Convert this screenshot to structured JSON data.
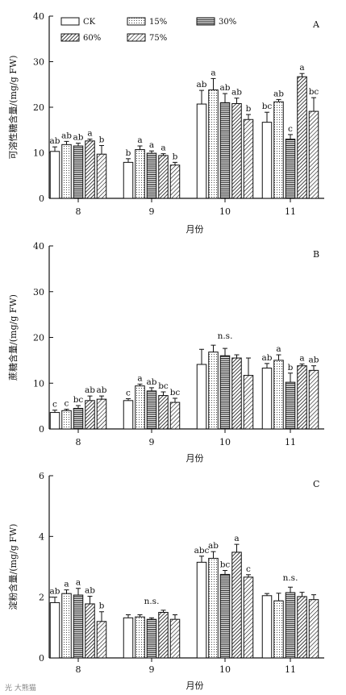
{
  "legend": [
    "CK",
    "15%",
    "30%",
    "60%",
    "75%"
  ],
  "colors": {
    "stroke": "#111111",
    "fill": "#ffffff"
  },
  "watermark": "光 大熊猫",
  "chart_data": [
    {
      "type": "bar",
      "panel": "A",
      "ylabel": "可溶性糖含量/(mg/g FW)",
      "xlabel": "月份",
      "categories": [
        "8",
        "9",
        "10",
        "11"
      ],
      "ylim": [
        0,
        40
      ],
      "yticks": [
        "0",
        "10",
        "20",
        "30",
        "40"
      ],
      "series": [
        {
          "name": "CK",
          "values": [
            10.3,
            7.9,
            20.7,
            16.7
          ],
          "errors": [
            1.0,
            0.8,
            3.0,
            2.2
          ]
        },
        {
          "name": "15%",
          "values": [
            11.8,
            10.7,
            23.8,
            21.2
          ],
          "errors": [
            0.7,
            0.8,
            2.5,
            0.5
          ]
        },
        {
          "name": "30%",
          "values": [
            11.5,
            9.9,
            21.0,
            13.0
          ],
          "errors": [
            0.6,
            0.5,
            2.0,
            1.0
          ]
        },
        {
          "name": "60%",
          "values": [
            12.6,
            9.4,
            20.8,
            26.7
          ],
          "errors": [
            0.4,
            0.4,
            1.2,
            0.7
          ]
        },
        {
          "name": "75%",
          "values": [
            9.7,
            7.3,
            17.3,
            19.1
          ],
          "errors": [
            1.9,
            0.6,
            1.1,
            3.0
          ]
        }
      ],
      "labels": [
        [
          "ab",
          "ab",
          "ab",
          "a",
          "b"
        ],
        [
          "b",
          "a",
          "a",
          "a",
          "b"
        ],
        [
          "ab",
          "a",
          "ab",
          "ab",
          "b"
        ],
        [
          "bc",
          "ab",
          "c",
          "a",
          "bc"
        ]
      ],
      "group_labels": [
        "",
        "",
        "",
        ""
      ]
    },
    {
      "type": "bar",
      "panel": "B",
      "ylabel": "蔗糖含量/(mg/g FW)",
      "xlabel": "月份",
      "categories": [
        "8",
        "9",
        "10",
        "11"
      ],
      "ylim": [
        0,
        40
      ],
      "yticks": [
        "0",
        "10",
        "20",
        "30",
        "40"
      ],
      "series": [
        {
          "name": "CK",
          "values": [
            3.6,
            6.2,
            14.1,
            13.3
          ],
          "errors": [
            0.5,
            0.4,
            3.3,
            1.0
          ]
        },
        {
          "name": "15%",
          "values": [
            4.0,
            9.4,
            16.8,
            15.0
          ],
          "errors": [
            0.3,
            0.4,
            1.5,
            1.2
          ]
        },
        {
          "name": "30%",
          "values": [
            4.5,
            8.3,
            16.0,
            10.2
          ],
          "errors": [
            0.6,
            0.7,
            1.6,
            2.0
          ]
        },
        {
          "name": "60%",
          "values": [
            6.2,
            7.3,
            15.5,
            13.8
          ],
          "errors": [
            1.0,
            0.8,
            0.7,
            0.4
          ]
        },
        {
          "name": "75%",
          "values": [
            6.5,
            5.8,
            11.7,
            12.8
          ],
          "errors": [
            0.7,
            0.9,
            3.8,
            1.0
          ]
        }
      ],
      "labels": [
        [
          "c",
          "c",
          "bc",
          "ab",
          "ab"
        ],
        [
          "c",
          "a",
          "ab",
          "bc",
          "bc"
        ],
        [
          "",
          "",
          "",
          "",
          ""
        ],
        [
          "ab",
          "a",
          "b",
          "a",
          "ab"
        ]
      ],
      "group_labels": [
        "",
        "",
        "n.s.",
        ""
      ]
    },
    {
      "type": "bar",
      "panel": "C",
      "ylabel": "淀粉含量/(mg/g FW)",
      "xlabel": "月份",
      "categories": [
        "8",
        "9",
        "10",
        "11"
      ],
      "ylim": [
        0,
        6
      ],
      "yticks": [
        "0",
        "2",
        "4",
        "6"
      ],
      "series": [
        {
          "name": "CK",
          "values": [
            1.82,
            1.32,
            3.15,
            2.05
          ],
          "errors": [
            0.18,
            0.1,
            0.2,
            0.07
          ]
        },
        {
          "name": "15%",
          "values": [
            2.12,
            1.35,
            3.28,
            1.88
          ],
          "errors": [
            0.12,
            0.07,
            0.22,
            0.25
          ]
        },
        {
          "name": "30%",
          "values": [
            2.07,
            1.27,
            2.75,
            2.15
          ],
          "errors": [
            0.22,
            0.05,
            0.13,
            0.18
          ]
        },
        {
          "name": "60%",
          "values": [
            1.78,
            1.5,
            3.48,
            2.02
          ],
          "errors": [
            0.25,
            0.07,
            0.26,
            0.14
          ]
        },
        {
          "name": "75%",
          "values": [
            1.2,
            1.27,
            2.66,
            1.92
          ],
          "errors": [
            0.32,
            0.15,
            0.08,
            0.16
          ]
        }
      ],
      "labels": [
        [
          "ab",
          "a",
          "a",
          "ab",
          "b"
        ],
        [
          "",
          "",
          "",
          "",
          ""
        ],
        [
          "abc",
          "ab",
          "bc",
          "a",
          "c"
        ],
        [
          "",
          "",
          "",
          "",
          ""
        ]
      ],
      "group_labels": [
        "",
        "n.s.",
        "",
        "n.s."
      ]
    }
  ]
}
